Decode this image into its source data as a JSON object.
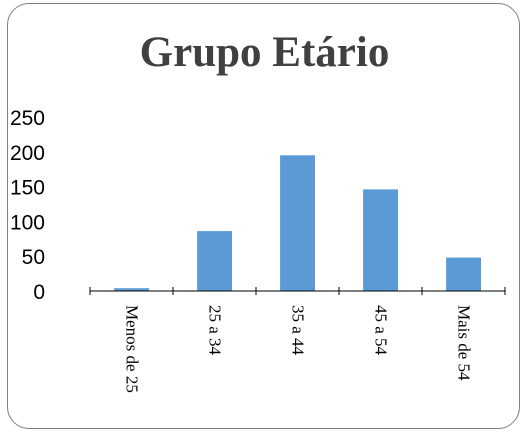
{
  "chart_data": {
    "type": "bar",
    "title": "Grupo Etário",
    "categories": [
      "Menos de 25",
      "25 a 34",
      "35 a 44",
      "45 a 54",
      "Mais de 54"
    ],
    "values": [
      4,
      86,
      195,
      146,
      48
    ],
    "y_tick_labels": [
      "0",
      "50",
      "100",
      "150",
      "200",
      "250"
    ],
    "ylim": [
      0,
      250
    ],
    "grid": false,
    "legend": "none",
    "bar_color": "#5b9bd5",
    "axis_color": "#000000"
  }
}
